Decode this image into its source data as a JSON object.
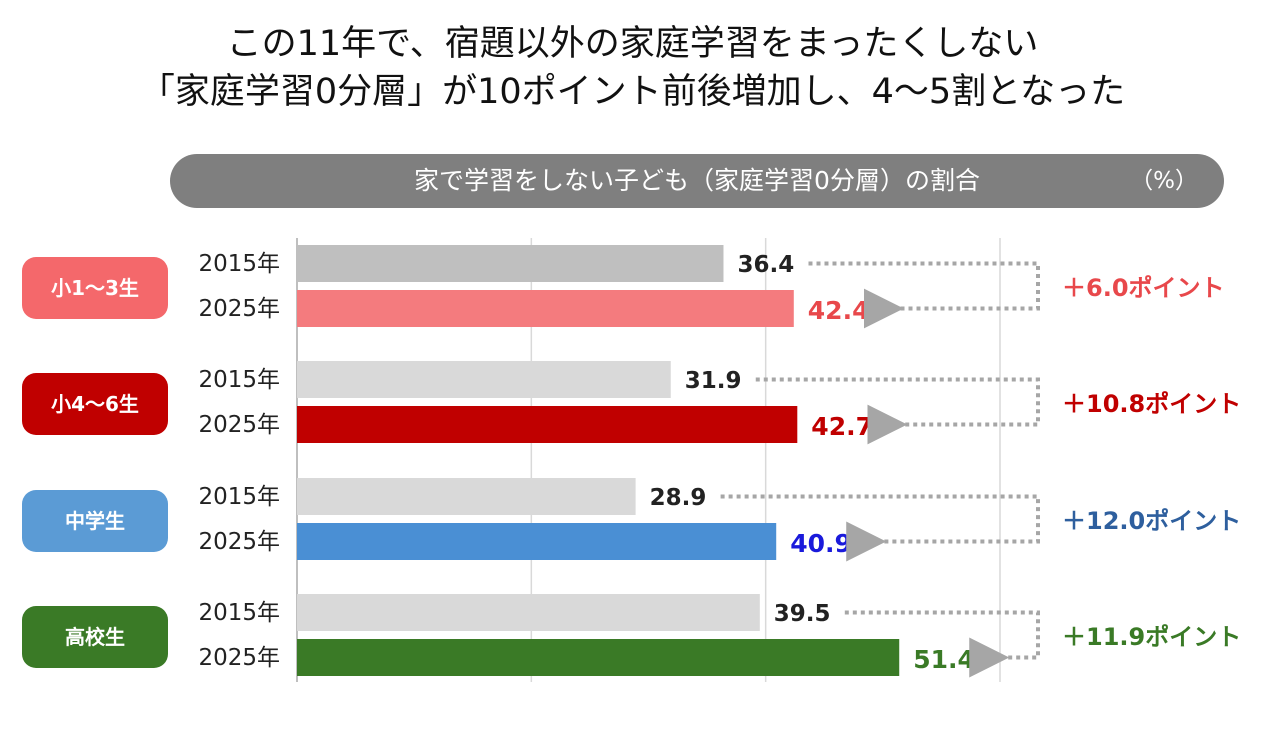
{
  "headline": {
    "line1": "この11年で、宿題以外の家庭学習をまったくしない",
    "line2": "「家庭学習0分層」が10ポイント前後増加し、4～5割となった"
  },
  "chart_data": {
    "type": "bar",
    "orientation": "horizontal",
    "title": "家で学習をしない子ども（家庭学習0分層）の割合",
    "unit_label": "（%）",
    "xlim": [
      0,
      60
    ],
    "grid": true,
    "groups": [
      {
        "label": "小1～3生",
        "color_label": "#f4686b",
        "color_2015": "#bfbfbf",
        "color_2025": "#f47b7e",
        "value_color_2025": "#e8484b",
        "bars": [
          {
            "year": "2015年",
            "value": 36.4
          },
          {
            "year": "2025年",
            "value": 42.4
          }
        ],
        "diff_label": "＋6.0ポイント",
        "diff_color": "#e8484b"
      },
      {
        "label": "小4～6生",
        "color_label": "#c00000",
        "color_2015": "#d9d9d9",
        "color_2025": "#c00000",
        "value_color_2025": "#c00000",
        "bars": [
          {
            "year": "2015年",
            "value": 31.9
          },
          {
            "year": "2025年",
            "value": 42.7
          }
        ],
        "diff_label": "＋10.8ポイント",
        "diff_color": "#c00000"
      },
      {
        "label": "中学生",
        "color_label": "#5b9bd5",
        "color_2015": "#d9d9d9",
        "color_2025": "#4a8fd4",
        "value_color_2025": "#1a1adb",
        "bars": [
          {
            "year": "2015年",
            "value": 28.9
          },
          {
            "year": "2025年",
            "value": 40.9
          }
        ],
        "diff_label": "＋12.0ポイント",
        "diff_color": "#2e5f9e"
      },
      {
        "label": "高校生",
        "color_label": "#3a7a26",
        "color_2015": "#d9d9d9",
        "color_2025": "#3a7a26",
        "value_color_2025": "#3a7a26",
        "bars": [
          {
            "year": "2015年",
            "value": 39.5
          },
          {
            "year": "2025年",
            "value": 51.4
          }
        ],
        "diff_label": "＋11.9ポイント",
        "diff_color": "#3a7a26"
      }
    ]
  }
}
